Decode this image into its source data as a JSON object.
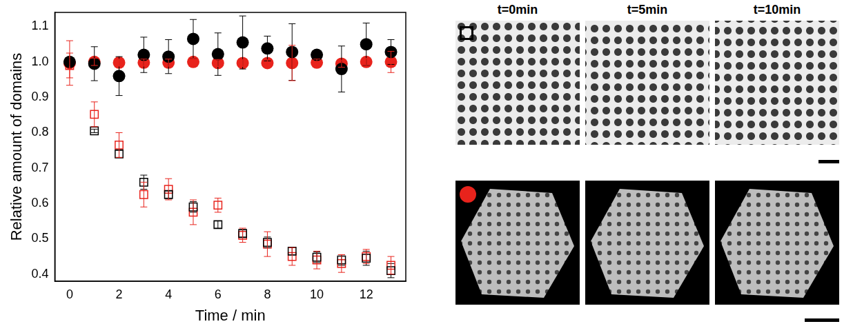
{
  "chart_data": {
    "type": "scatter",
    "x_label": "Time / min",
    "y_label": "Relative amount of domains",
    "x": [
      0,
      1,
      2,
      3,
      4,
      5,
      6,
      7,
      8,
      9,
      10,
      11,
      12,
      13
    ],
    "xlim": [
      -0.6,
      13.6
    ],
    "xticks": [
      0,
      2,
      4,
      6,
      8,
      10,
      12
    ],
    "ylim": [
      0.38,
      1.14
    ],
    "yticks": [
      0.4,
      0.5,
      0.6,
      0.7,
      0.8,
      0.9,
      {
        "value": 1,
        "label": "1.0"
      },
      1.1
    ],
    "grid": false,
    "series": [
      {
        "color": "#000000",
        "marker": "circle",
        "values": [
          1.0,
          0.995,
          0.96,
          1.02,
          1.015,
          1.065,
          1.022,
          1.055,
          1.038,
          1.028,
          1.02,
          0.98,
          1.05,
          1.028
        ],
        "errors": [
          0.01,
          0.048,
          0.055,
          0.05,
          0.048,
          0.055,
          0.06,
          0.075,
          0.035,
          0.08,
          0.01,
          0.065,
          0.06,
          0.035
        ]
      },
      {
        "color": "#e8231c",
        "marker": "circle",
        "values": [
          0.997,
          1.0,
          0.998,
          0.998,
          0.998,
          1.0,
          0.997,
          0.997,
          0.997,
          0.997,
          0.998,
          0.995,
          1.0,
          1.0
        ],
        "errors": [
          0.063,
          0.01,
          0.01,
          0.01,
          0.01,
          0.01,
          0.01,
          0.01,
          0.01,
          0.05,
          0.01,
          0.01,
          0.01,
          0.03
        ]
      },
      {
        "color": "#000000",
        "marker": "open_square",
        "values": [
          1.0,
          0.805,
          0.74,
          0.66,
          0.625,
          0.59,
          0.54,
          0.515,
          0.49,
          0.465,
          0.448,
          0.44,
          0.445,
          0.41
        ],
        "errors": [
          0.01,
          0.005,
          0.01,
          0.02,
          0.01,
          0.015,
          0.01,
          0.01,
          0.015,
          0.01,
          0.015,
          0.015,
          0.02,
          0.02
        ]
      },
      {
        "color": "#e8231c",
        "marker": "open_square",
        "values": [
          0.99,
          0.852,
          0.765,
          0.625,
          0.64,
          0.575,
          0.595,
          0.51,
          0.485,
          0.45,
          0.44,
          0.43,
          0.45,
          0.425
        ],
        "errors": [
          0.035,
          0.035,
          0.035,
          0.035,
          0.03,
          0.035,
          0.02,
          0.02,
          0.035,
          0.025,
          0.025,
          0.025,
          0.02,
          0.025
        ]
      }
    ]
  },
  "images": {
    "time_labels": [
      "t=0min",
      "t=5min",
      "t=10min"
    ]
  }
}
